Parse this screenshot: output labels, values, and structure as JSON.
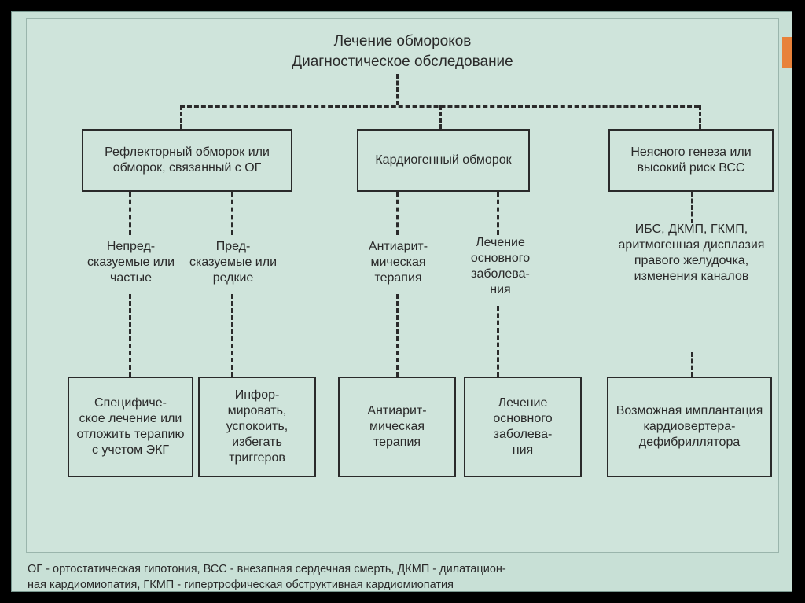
{
  "diagram": {
    "type": "flowchart",
    "background": "#cfe4db",
    "outer_background": "#c8e0d6",
    "accent_color": "#e8823a",
    "border_color": "#2a2a2a",
    "text_color": "#2a2a2a",
    "dash_style": "dashed",
    "line_width": 3,
    "font_family": "Arial",
    "title_fontsize": 19,
    "node_fontsize": 16,
    "footnote_fontsize": 14.5,
    "titles": {
      "line1": "Лечение обмороков",
      "line2": "Диагностическое обследование"
    },
    "row1": {
      "reflex": "Рефлекторный обморок или обморок, связанный с ОГ",
      "cardio": "Кардиогенный обморок",
      "unclear": "Неясного генеза или высокий риск ВСС"
    },
    "row2": {
      "unpred": "Непред-\nсказуемые или частые",
      "pred": "Пред-\nсказуемые или редкие",
      "antiar1": "Антиарит-\nмическая терапия",
      "underlying1": "Лечение основного заболева-\nния",
      "ibs": "ИБС, ДКМП, ГКМП, аритмогенная дисплазия правого желудочка, изменения каналов"
    },
    "row3": {
      "specific": "Специфиче-\nское лечение или отложить терапию с учетом ЭКГ",
      "inform": "Инфор-\nмировать, успокоить, избегать триггеров",
      "antiar2": "Антиарит-\nмическая терапия",
      "underlying2": "Лечение основного заболева-\nния",
      "implant": "Возможная имплантация кардиовертера-\nдефибриллятора"
    },
    "footnote": "ОГ - ортостатическая гипотония,  ВСС - внезапная сердечная смерть,  ДКМП - дилатацион-\nная кардиомиопатия, ГКМП - гипертрофическая обструктивная кардиомиопатия"
  }
}
